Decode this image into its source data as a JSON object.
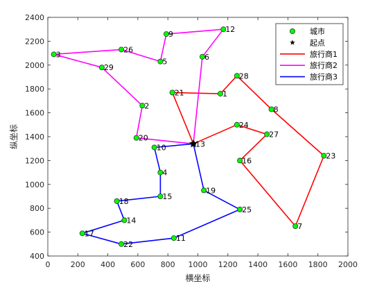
{
  "chart_data": {
    "type": "line",
    "xlabel": "横坐标",
    "ylabel": "纵坐标",
    "xlim": [
      0,
      2000
    ],
    "ylim": [
      400,
      2400
    ],
    "xticks": [
      0,
      200,
      400,
      600,
      800,
      1000,
      1200,
      1400,
      1600,
      1800,
      2000
    ],
    "yticks": [
      400,
      600,
      800,
      1000,
      1200,
      1400,
      1600,
      1800,
      2000,
      2200,
      2400
    ],
    "grid": false,
    "legend_position": "top-right",
    "legend": [
      {
        "label": "城市",
        "kind": "marker",
        "color": "#00ff00"
      },
      {
        "label": "起点",
        "kind": "star",
        "color": "#000000"
      },
      {
        "label": "旅行商1",
        "kind": "line",
        "color": "#ff0000"
      },
      {
        "label": "旅行商2",
        "kind": "line",
        "color": "#ff00ff"
      },
      {
        "label": "旅行商3",
        "kind": "line",
        "color": "#0000ff"
      }
    ],
    "start_city": 13,
    "cities": [
      {
        "id": 1,
        "x": 1150,
        "y": 1760
      },
      {
        "id": 2,
        "x": 630,
        "y": 1660
      },
      {
        "id": 3,
        "x": 40,
        "y": 2090
      },
      {
        "id": 4,
        "x": 750,
        "y": 1100
      },
      {
        "id": 5,
        "x": 750,
        "y": 2030
      },
      {
        "id": 6,
        "x": 1030,
        "y": 2070
      },
      {
        "id": 7,
        "x": 1650,
        "y": 650
      },
      {
        "id": 8,
        "x": 1490,
        "y": 1630
      },
      {
        "id": 9,
        "x": 790,
        "y": 2260
      },
      {
        "id": 10,
        "x": 710,
        "y": 1310
      },
      {
        "id": 11,
        "x": 840,
        "y": 550
      },
      {
        "id": 12,
        "x": 1170,
        "y": 2300
      },
      {
        "id": 13,
        "x": 970,
        "y": 1340
      },
      {
        "id": 14,
        "x": 510,
        "y": 700
      },
      {
        "id": 15,
        "x": 750,
        "y": 900
      },
      {
        "id": 16,
        "x": 1280,
        "y": 1200
      },
      {
        "id": 17,
        "x": 230,
        "y": 590
      },
      {
        "id": 18,
        "x": 460,
        "y": 860
      },
      {
        "id": 19,
        "x": 1040,
        "y": 950
      },
      {
        "id": 20,
        "x": 590,
        "y": 1390
      },
      {
        "id": 21,
        "x": 830,
        "y": 1770
      },
      {
        "id": 22,
        "x": 490,
        "y": 500
      },
      {
        "id": 23,
        "x": 1840,
        "y": 1240
      },
      {
        "id": 24,
        "x": 1260,
        "y": 1500
      },
      {
        "id": 25,
        "x": 1280,
        "y": 790
      },
      {
        "id": 26,
        "x": 490,
        "y": 2130
      },
      {
        "id": 27,
        "x": 1460,
        "y": 1420
      },
      {
        "id": 28,
        "x": 1260,
        "y": 1910
      },
      {
        "id": 29,
        "x": 360,
        "y": 1980
      }
    ],
    "series": [
      {
        "name": "旅行商1",
        "color": "#ff0000",
        "route": [
          13,
          24,
          27,
          16,
          7,
          23,
          8,
          28,
          1,
          21,
          13
        ]
      },
      {
        "name": "旅行商2",
        "color": "#ff00ff",
        "route": [
          13,
          6,
          12,
          9,
          5,
          26,
          3,
          29,
          2,
          20,
          13
        ]
      },
      {
        "name": "旅行商3",
        "color": "#0000ff",
        "route": [
          13,
          10,
          4,
          15,
          18,
          14,
          17,
          22,
          11,
          25,
          19,
          13
        ]
      }
    ]
  }
}
